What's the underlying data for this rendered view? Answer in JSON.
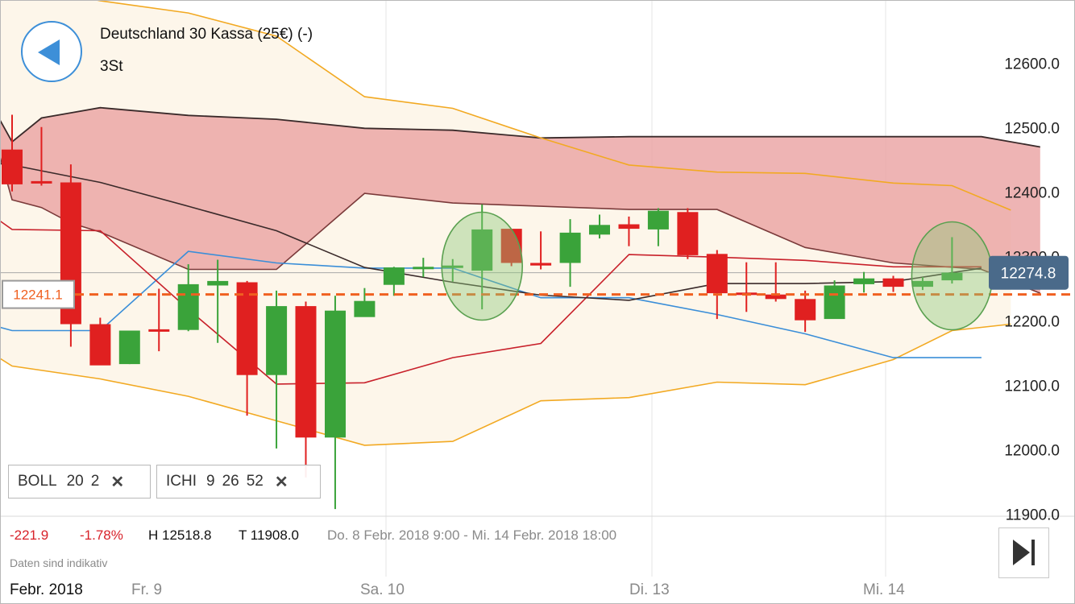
{
  "header": {
    "instrument": "Deutschland 30 Kassa (25€) (-)",
    "interval": "3St"
  },
  "indicators": [
    {
      "name": "BOLL",
      "params": [
        "20",
        "2"
      ]
    },
    {
      "name": "ICHI",
      "params": [
        "9",
        "26",
        "52"
      ]
    }
  ],
  "stats": {
    "change": "-221.9",
    "change_pct": "-1.78%",
    "high": "H 12518.8",
    "low": "T 11908.0",
    "range": "Do. 8 Febr. 2018 9:00 - Mi. 14 Febr. 2018 18:00"
  },
  "disclaimer": "Daten sind indikativ",
  "x_labels": [
    "Febr. 2018",
    "Fr. 9",
    "Sa. 10",
    "Di. 13",
    "Mi. 14"
  ],
  "colors": {
    "up": "#3aa33a",
    "down": "#e02020",
    "cloud": "#eaa3a3",
    "bollinger": "#f2a922",
    "bollinger_fill": "#fdf6ea",
    "tenkan": "#3a8ed8",
    "kijun": "#c8202a",
    "chikou": "#3a2a2a",
    "reference_line": "#f06020",
    "last_price_badge": "#4a6a8a"
  },
  "chart_data": {
    "type": "candlestick",
    "ylim": [
      11880,
      12700
    ],
    "yticks": [
      "12600.0",
      "12500.0",
      "12400.0",
      "12300.0",
      "12200.0",
      "12100.0",
      "12000.0",
      "11900.0"
    ],
    "reference_price": "12241.1",
    "last_price": "12274.8",
    "candles": [
      {
        "o": 12466,
        "h": 12520,
        "l": 12401,
        "c": 12412
      },
      {
        "o": 12417,
        "h": 12501,
        "l": 12410,
        "c": 12416
      },
      {
        "o": 12415,
        "h": 12443,
        "l": 12160,
        "c": 12195
      },
      {
        "o": 12195,
        "h": 12205,
        "l": 12134,
        "c": 12131
      },
      {
        "o": 12133,
        "h": 12183,
        "l": 12133,
        "c": 12185
      },
      {
        "o": 12187,
        "h": 12250,
        "l": 12153,
        "c": 12184
      },
      {
        "o": 12186,
        "h": 12288,
        "l": 12184,
        "c": 12257
      },
      {
        "o": 12255,
        "h": 12295,
        "l": 12166,
        "c": 12262
      },
      {
        "o": 12260,
        "h": 12262,
        "l": 12053,
        "c": 12116
      },
      {
        "o": 12116,
        "h": 12247,
        "l": 12002,
        "c": 12223
      },
      {
        "o": 12223,
        "h": 12230,
        "l": 11957,
        "c": 12019
      },
      {
        "o": 12019,
        "h": 12239,
        "l": 11908,
        "c": 12216
      },
      {
        "o": 12206,
        "h": 12251,
        "l": 12210,
        "c": 12231
      },
      {
        "o": 12256,
        "h": 12284,
        "l": 12239,
        "c": 12283
      },
      {
        "o": 12281,
        "h": 12298,
        "l": 12268,
        "c": 12284
      },
      {
        "o": 12283,
        "h": 12296,
        "l": 12261,
        "c": 12286
      },
      {
        "o": 12278,
        "h": 12381,
        "l": 12218,
        "c": 12342
      },
      {
        "o": 12343,
        "h": 12340,
        "l": 12285,
        "c": 12290
      },
      {
        "o": 12290,
        "h": 12339,
        "l": 12280,
        "c": 12286
      },
      {
        "o": 12290,
        "h": 12358,
        "l": 12253,
        "c": 12337
      },
      {
        "o": 12334,
        "h": 12365,
        "l": 12328,
        "c": 12349
      },
      {
        "o": 12350,
        "h": 12362,
        "l": 12316,
        "c": 12343
      },
      {
        "o": 12342,
        "h": 12375,
        "l": 12316,
        "c": 12371
      },
      {
        "o": 12369,
        "h": 12375,
        "l": 12296,
        "c": 12302
      },
      {
        "o": 12304,
        "h": 12310,
        "l": 12203,
        "c": 12243
      },
      {
        "o": 12244,
        "h": 12291,
        "l": 12214,
        "c": 12241
      },
      {
        "o": 12241,
        "h": 12291,
        "l": 12230,
        "c": 12234
      },
      {
        "o": 12234,
        "h": 12247,
        "l": 12183,
        "c": 12201
      },
      {
        "o": 12203,
        "h": 12263,
        "l": 12207,
        "c": 12255
      },
      {
        "o": 12257,
        "h": 12276,
        "l": 12244,
        "c": 12266
      },
      {
        "o": 12266,
        "h": 12270,
        "l": 12245,
        "c": 12253
      },
      {
        "o": 12253,
        "h": 12268,
        "l": 12248,
        "c": 12262
      },
      {
        "o": 12263,
        "h": 12330,
        "l": 12258,
        "c": 12275
      }
    ],
    "bollinger_upper": [
      [
        -6,
        12735
      ],
      [
        -3,
        12743
      ],
      [
        0,
        12722
      ],
      [
        3,
        12697
      ],
      [
        6,
        12678
      ],
      [
        9,
        12642
      ],
      [
        12,
        12548
      ],
      [
        15,
        12530
      ],
      [
        18,
        12484
      ],
      [
        21,
        12442
      ],
      [
        24,
        12431
      ],
      [
        27,
        12429
      ],
      [
        30,
        12414
      ],
      [
        32,
        12410
      ],
      [
        34,
        12372
      ]
    ],
    "bollinger_lower": [
      [
        -6,
        12050
      ],
      [
        -3,
        12216
      ],
      [
        0,
        12130
      ],
      [
        3,
        12110
      ],
      [
        6,
        12083
      ],
      [
        9,
        12045
      ],
      [
        12,
        12007
      ],
      [
        15,
        12013
      ],
      [
        18,
        12076
      ],
      [
        21,
        12081
      ],
      [
        24,
        12105
      ],
      [
        27,
        12101
      ],
      [
        30,
        12140
      ],
      [
        32,
        12185
      ],
      [
        34,
        12195
      ]
    ],
    "tenkan": [
      [
        -6,
        12222
      ],
      [
        -3,
        12222
      ],
      [
        0,
        12185
      ],
      [
        3,
        12185
      ],
      [
        6,
        12308
      ],
      [
        9,
        12290
      ],
      [
        12,
        12282
      ],
      [
        15,
        12282
      ],
      [
        18,
        12236
      ],
      [
        21,
        12236
      ],
      [
        24,
        12210
      ],
      [
        27,
        12180
      ],
      [
        30,
        12143
      ],
      [
        33,
        12143
      ]
    ],
    "kijun": [
      [
        -6,
        12528
      ],
      [
        -3,
        12438
      ],
      [
        0,
        12342
      ],
      [
        3,
        12340
      ],
      [
        6,
        12218
      ],
      [
        9,
        12102
      ],
      [
        12,
        12104
      ],
      [
        15,
        12143
      ],
      [
        18,
        12165
      ],
      [
        21,
        12303
      ],
      [
        24,
        12299
      ],
      [
        27,
        12294
      ],
      [
        30,
        12284
      ],
      [
        33,
        12284
      ]
    ],
    "chikou": [
      [
        -6,
        12440
      ],
      [
        -3,
        12458
      ],
      [
        0,
        12442
      ],
      [
        3,
        12415
      ],
      [
        6,
        12378
      ],
      [
        9,
        12340
      ],
      [
        12,
        12283
      ],
      [
        15,
        12260
      ],
      [
        18,
        12240
      ],
      [
        21,
        12232
      ],
      [
        24,
        12258
      ],
      [
        27,
        12258
      ],
      [
        30,
        12261
      ],
      [
        33,
        12282
      ]
    ],
    "cloud_upper": [
      [
        -2,
        12750
      ],
      [
        -1,
        12560
      ],
      [
        0,
        12478
      ],
      [
        1,
        12515
      ],
      [
        2,
        12523
      ],
      [
        3,
        12531
      ],
      [
        6,
        12519
      ],
      [
        9,
        12513
      ],
      [
        12,
        12499
      ],
      [
        15,
        12496
      ],
      [
        18,
        12484
      ],
      [
        21,
        12486
      ],
      [
        24,
        12486
      ],
      [
        27,
        12486
      ],
      [
        30,
        12486
      ],
      [
        33,
        12486
      ],
      [
        35,
        12470
      ]
    ],
    "cloud_lower": [
      [
        -2,
        12750
      ],
      [
        -1,
        12550
      ],
      [
        0,
        12388
      ],
      [
        1,
        12376
      ],
      [
        2,
        12352
      ],
      [
        3,
        12338
      ],
      [
        6,
        12280
      ],
      [
        9,
        12280
      ],
      [
        12,
        12398
      ],
      [
        15,
        12383
      ],
      [
        18,
        12378
      ],
      [
        21,
        12373
      ],
      [
        24,
        12373
      ],
      [
        27,
        12314
      ],
      [
        30,
        12290
      ],
      [
        33,
        12280
      ],
      [
        35,
        12243
      ]
    ],
    "highlight_circles": [
      [
        16,
        12285
      ],
      [
        32,
        12270
      ]
    ]
  }
}
